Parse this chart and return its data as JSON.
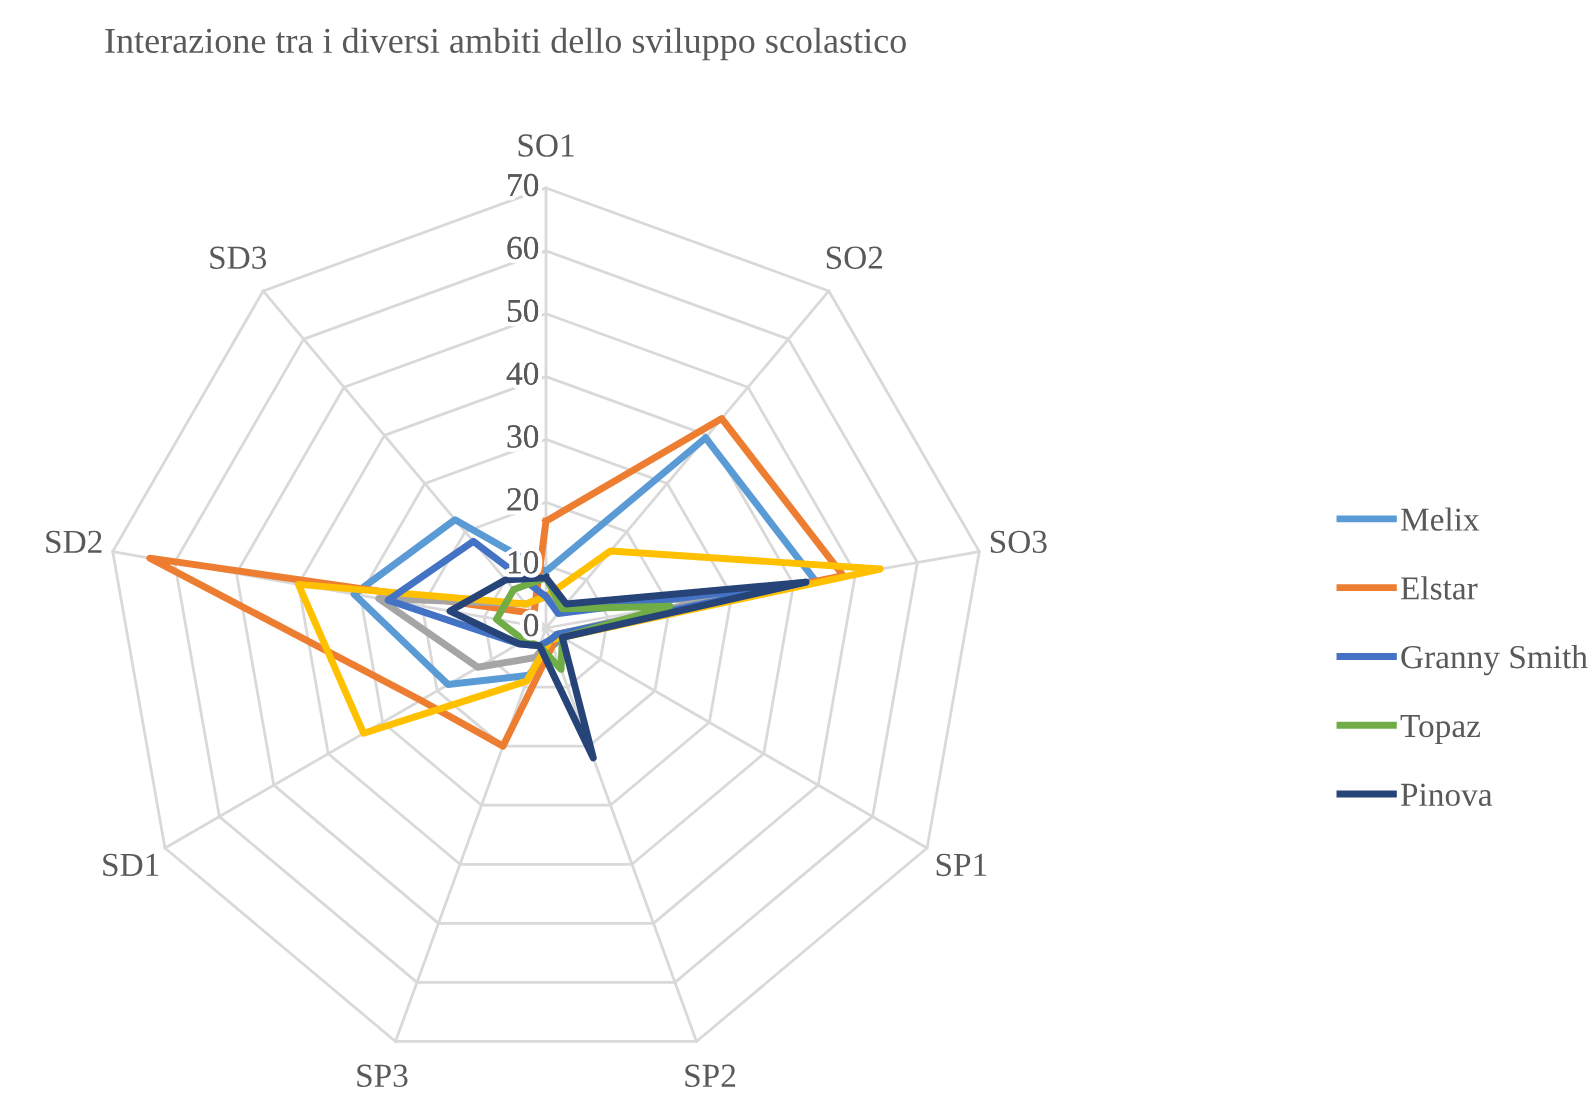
{
  "chart_data": {
    "type": "radar",
    "title": "Interazione tra i diversi ambiti dello sviluppo scolastico",
    "categories": [
      "SO1",
      "SO2",
      "SO3",
      "SP1",
      "SP2",
      "SP3",
      "SD1",
      "SD2",
      "SD3"
    ],
    "ylim": [
      0,
      70
    ],
    "yticks": [
      0,
      10,
      20,
      30,
      40,
      50,
      60,
      70
    ],
    "grid": true,
    "legend": "right",
    "marker": "none",
    "line_style": "solid",
    "series": [
      {
        "name": "Melix",
        "color": "#5b9bd5",
        "values": [
          9,
          39.5,
          43.5,
          3,
          3,
          8,
          18,
          31,
          22.5
        ]
      },
      {
        "name": "Elstar",
        "color": "#ed7d31",
        "values": [
          17,
          43.5,
          48,
          2,
          3,
          20,
          23,
          64,
          3
        ]
      },
      {
        "color": "#a5a5a5",
        "values": [
          5,
          5,
          28,
          2,
          2,
          5,
          12.5,
          27,
          5
        ]
      },
      {
        "color": "#ffc000",
        "values": [
          5,
          16,
          54,
          3,
          2,
          9,
          33.5,
          40,
          5
        ]
      },
      {
        "name": "Granny Smith",
        "color": "#4472c4",
        "values": [
          5,
          3,
          42,
          2,
          2,
          3,
          5,
          25.5,
          18
        ]
      },
      {
        "name": "Topaz",
        "color": "#70ad47",
        "values": [
          8,
          4,
          20,
          3,
          7,
          3,
          4,
          8,
          8
        ]
      },
      {
        "name": "Pinova",
        "color": "#264478",
        "values": [
          8,
          5,
          42,
          3,
          22,
          3,
          5,
          15.5,
          10
        ]
      }
    ]
  }
}
